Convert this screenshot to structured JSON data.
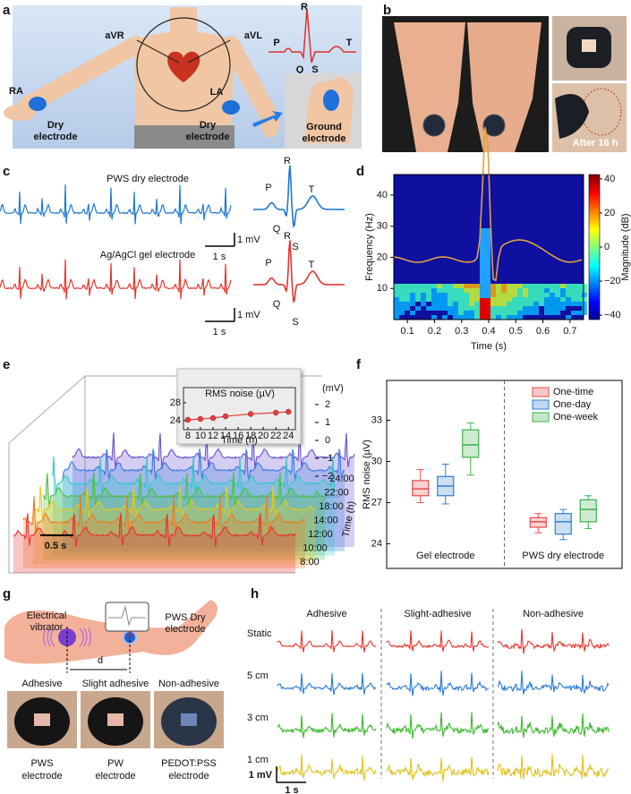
{
  "panel_labels": [
    "a",
    "b",
    "c",
    "d",
    "e",
    "f",
    "g",
    "h"
  ],
  "a": {
    "lead_labels": [
      "aVR",
      "aVL"
    ],
    "wave_labels": [
      "R",
      "P",
      "T",
      "Q",
      "S"
    ],
    "electrodes": [
      {
        "site": "RA",
        "label": [
          "Dry",
          "electrode"
        ]
      },
      {
        "site": "LA",
        "label": [
          "Dry",
          "electrode"
        ]
      }
    ],
    "ground": [
      "Ground",
      "electrode"
    ]
  },
  "b": {
    "caption": "After 16 h"
  },
  "c": {
    "traces": [
      {
        "title": "PWS dry electrode",
        "color": "#1f78d1"
      },
      {
        "title": "Ag/AgCl gel electrode",
        "color": "#e8352d"
      }
    ],
    "wave_labels": [
      "R",
      "P",
      "Q",
      "S",
      "T"
    ],
    "scale_v": "1 mV",
    "scale_t": "1 s"
  },
  "e": {
    "unit": "(mV)",
    "scale_ticks": [
      "2",
      "1",
      "0",
      "−1",
      "−2"
    ],
    "times": [
      "8:00",
      "10:00",
      "12:00",
      "14:00",
      "18:00",
      "22:00",
      "24:00"
    ],
    "time_label": "Time (h)",
    "scale_bar": "0.5 s"
  },
  "g": {
    "vibrator": [
      "Electrical",
      "vibrator"
    ],
    "electrode": [
      "PWS Dry",
      "electrode"
    ],
    "distance": "d",
    "photos": [
      {
        "title": "Adhesive",
        "caption": [
          "PWS",
          "electrode"
        ]
      },
      {
        "title": "Slight adhesive",
        "caption": [
          "PW",
          "electrode"
        ]
      },
      {
        "title": "Non-adhesive",
        "caption": [
          "PEDOT:PSS",
          "electrode"
        ]
      }
    ]
  },
  "h": {
    "columns": [
      "Adhesive",
      "Slight-adhesive",
      "Non-adhesive"
    ],
    "rows": [
      {
        "label": "Static",
        "color": "#e8352d"
      },
      {
        "label": "5 cm",
        "color": "#2a7bd6"
      },
      {
        "label": "3 cm",
        "color": "#3cb82e"
      },
      {
        "label": "1 cm",
        "color": "#e0c21a"
      }
    ],
    "scale_v": "1 mV",
    "scale_t": "1 s"
  },
  "chart_data": [
    {
      "type": "spectrogram",
      "xlabel": "Time (s)",
      "ylabel": "Frequency (Hz)",
      "colorbar_label": "Magnitude (dB)",
      "xlim": [
        0.05,
        0.75
      ],
      "xticks": [
        0.1,
        0.2,
        0.3,
        0.4,
        0.5,
        0.6,
        0.7
      ],
      "ylim": [
        0,
        46.6
      ],
      "yticks": [
        10,
        20,
        30,
        40
      ],
      "clim": [
        -42.6,
        42.6
      ],
      "cticks": [
        40,
        20,
        0,
        {
          "value": -20,
          "label": "−20"
        },
        {
          "value": -40,
          "label": "−40"
        }
      ]
    },
    {
      "type": "line",
      "title": "RMS noise (µV)",
      "xlabel": "Time (h)",
      "x": [
        8,
        10,
        12,
        14,
        18,
        22,
        24
      ],
      "values": [
        24.2,
        24.4,
        24.6,
        25.0,
        25.5,
        25.8,
        26.0
      ],
      "xlim": [
        7.3,
        25.1
      ],
      "xticks": [
        8,
        10,
        12,
        14,
        16,
        18,
        20,
        22,
        24
      ],
      "ylim": [
        22,
        31.4
      ],
      "yticks": [
        24,
        28
      ],
      "color": "#e04040"
    },
    {
      "type": "box",
      "ylabel": "RMS noise (µV)",
      "categories": [
        "Gel electrode",
        "PWS dry electrode"
      ],
      "ylim": [
        22.2,
        35.9
      ],
      "yticks": [
        24,
        27,
        30,
        33
      ],
      "legend": "upper right",
      "series": [
        {
          "name": "One-time",
          "color": "#e84a4a",
          "values": [
            [
              27.0,
              27.5,
              28.0,
              28.6,
              29.4
            ],
            [
              24.8,
              25.2,
              25.6,
              25.9,
              26.2
            ]
          ]
        },
        {
          "name": "One-day",
          "color": "#2f7fd0",
          "values": [
            [
              26.9,
              27.5,
              28.2,
              28.9,
              29.8
            ],
            [
              24.3,
              24.7,
              25.6,
              26.2,
              26.5
            ]
          ]
        },
        {
          "name": "One-week",
          "color": "#3cb04a",
          "values": [
            [
              29.0,
              30.3,
              31.2,
              32.3,
              32.8
            ],
            [
              25.1,
              25.6,
              26.5,
              27.2,
              27.5
            ]
          ]
        }
      ]
    }
  ]
}
